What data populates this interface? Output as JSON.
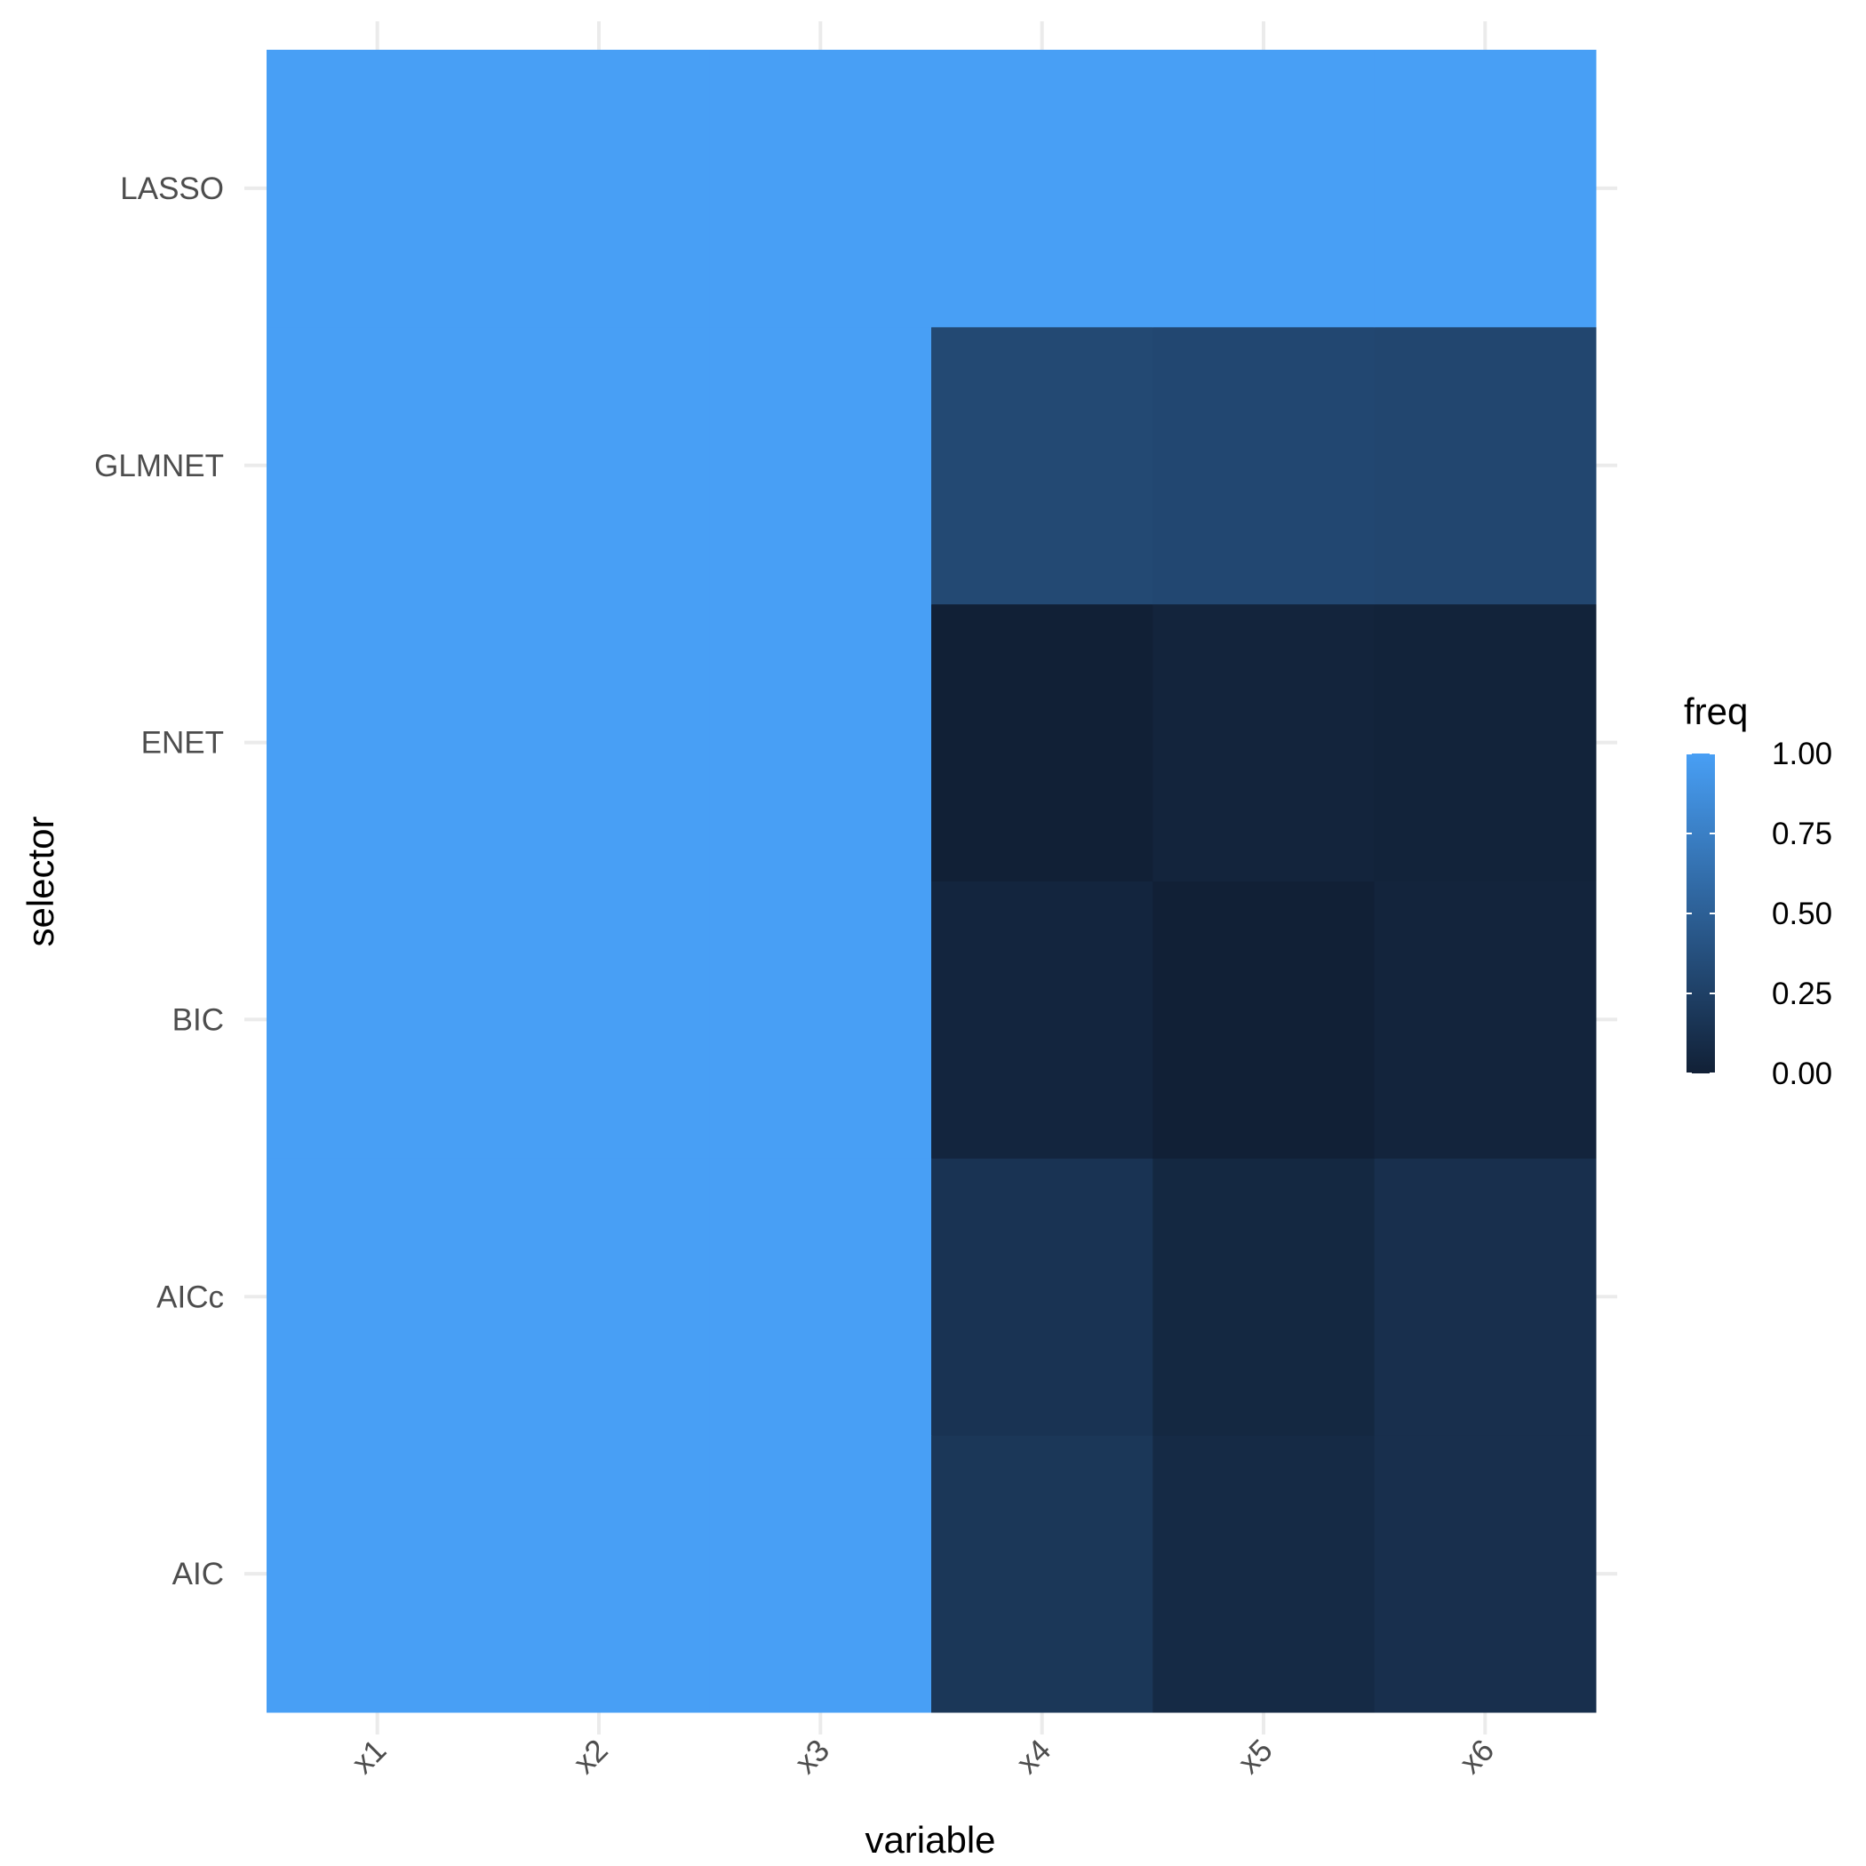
{
  "chart_data": {
    "type": "heatmap",
    "xlabel": "variable",
    "ylabel": "selector",
    "x_categories": [
      "x1",
      "x2",
      "x3",
      "x4",
      "x5",
      "x6"
    ],
    "y_categories": [
      "AIC",
      "AICc",
      "BIC",
      "ENET",
      "GLMNET",
      "LASSO"
    ],
    "values": {
      "LASSO": [
        1,
        1,
        1,
        1,
        1,
        1
      ],
      "GLMNET": [
        1,
        1,
        1,
        0.32,
        0.31,
        0.3
      ],
      "ENET": [
        1,
        1,
        1,
        0.0,
        0.03,
        0.02
      ],
      "BIC": [
        1,
        1,
        1,
        0.04,
        0.0,
        0.03
      ],
      "AICc": [
        1,
        1,
        1,
        0.15,
        0.06,
        0.12
      ],
      "AIC": [
        1,
        1,
        1,
        0.18,
        0.08,
        0.12
      ]
    },
    "legend": {
      "title": "freq",
      "ticks": [
        "0.00",
        "0.25",
        "0.50",
        "0.75",
        "1.00"
      ],
      "range": [
        0,
        1
      ],
      "position": "right"
    },
    "colors": {
      "low": "#112036",
      "high": "#489FF5",
      "grid": "#EBEBEB"
    },
    "grid": true
  }
}
